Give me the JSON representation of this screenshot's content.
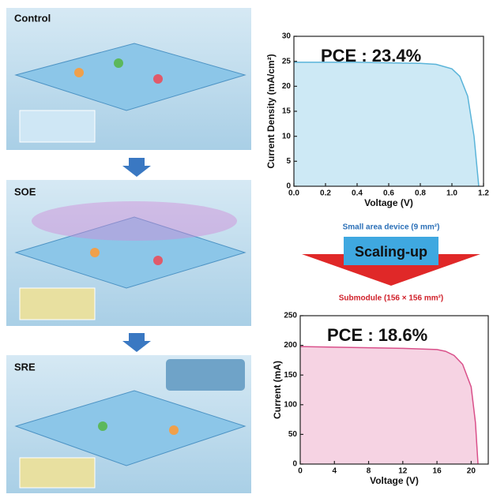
{
  "panels": {
    "control": "Control",
    "soe": "SOE",
    "sre": "SRE"
  },
  "scaling": {
    "small_label": "Small area device (9 mm²)",
    "arrow_label": "Scaling-up",
    "sub_label": "Submodule (156 × 156 mm²)"
  },
  "chart_data": [
    {
      "type": "area",
      "annotation": "PCE : 23.4%",
      "x_label": "Voltage (V)",
      "y_label": "Current Density (mA/cm²)",
      "x": [
        0,
        0.2,
        0.4,
        0.6,
        0.8,
        0.9,
        1.0,
        1.05,
        1.1,
        1.14,
        1.17
      ],
      "values": [
        24.8,
        24.8,
        24.8,
        24.7,
        24.6,
        24.4,
        23.5,
        22,
        18,
        10,
        0
      ],
      "color": "#5ab4d9",
      "fill": "#cde9f5",
      "xlim": [
        0,
        1.2
      ],
      "xticks": [
        {
          "value": 0,
          "label": "0.0"
        },
        0.2,
        0.4,
        0.6,
        0.8,
        {
          "value": 1,
          "label": "1.0"
        },
        1.2
      ],
      "ylim": [
        0,
        30
      ],
      "yticks": [
        0,
        5,
        10,
        15,
        20,
        25,
        30
      ]
    },
    {
      "type": "area",
      "annotation": "PCE : 18.6%",
      "x_label": "Voltage (V)",
      "y_label": "Current (mA)",
      "x": [
        0,
        4,
        8,
        12,
        16,
        17,
        18,
        19,
        20,
        20.5,
        20.8
      ],
      "values": [
        198,
        197,
        196,
        195,
        193,
        190,
        183,
        168,
        130,
        70,
        0
      ],
      "color": "#d9508a",
      "fill": "#f6d3e3",
      "xlim": [
        0,
        22
      ],
      "xticks": [
        0,
        4,
        8,
        12,
        16,
        20
      ],
      "ylim": [
        0,
        250
      ],
      "yticks": [
        0,
        50,
        100,
        150,
        200,
        250
      ]
    }
  ]
}
